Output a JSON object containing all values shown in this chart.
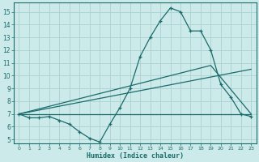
{
  "xlabel": "Humidex (Indice chaleur)",
  "bg_color": "#cdeaea",
  "grid_color": "#afd4d4",
  "line_color": "#1a6b6b",
  "xlim": [
    -0.5,
    23.5
  ],
  "ylim": [
    4.7,
    15.7
  ],
  "yticks": [
    5,
    6,
    7,
    8,
    9,
    10,
    11,
    12,
    13,
    14,
    15
  ],
  "xticks": [
    0,
    1,
    2,
    3,
    4,
    5,
    6,
    7,
    8,
    9,
    10,
    11,
    12,
    13,
    14,
    15,
    16,
    17,
    18,
    19,
    20,
    21,
    22,
    23
  ],
  "line1_x": [
    0,
    1,
    2,
    3,
    4,
    5,
    6,
    7,
    8,
    9,
    10,
    11,
    12,
    13,
    14,
    15,
    16,
    17,
    18,
    19,
    20,
    21,
    22,
    23
  ],
  "line1_y": [
    7.0,
    6.7,
    6.7,
    6.8,
    6.5,
    6.2,
    5.6,
    5.1,
    4.8,
    6.2,
    7.5,
    9.0,
    11.5,
    13.0,
    14.3,
    15.3,
    15.0,
    13.5,
    13.5,
    12.0,
    9.3,
    8.3,
    7.0,
    6.8
  ],
  "line2_x": [
    0,
    23
  ],
  "line2_y": [
    7.0,
    7.0
  ],
  "line3_x": [
    0,
    23
  ],
  "line3_y": [
    7.0,
    10.5
  ],
  "line4_x": [
    0,
    19,
    23
  ],
  "line4_y": [
    7.0,
    10.8,
    7.0
  ]
}
